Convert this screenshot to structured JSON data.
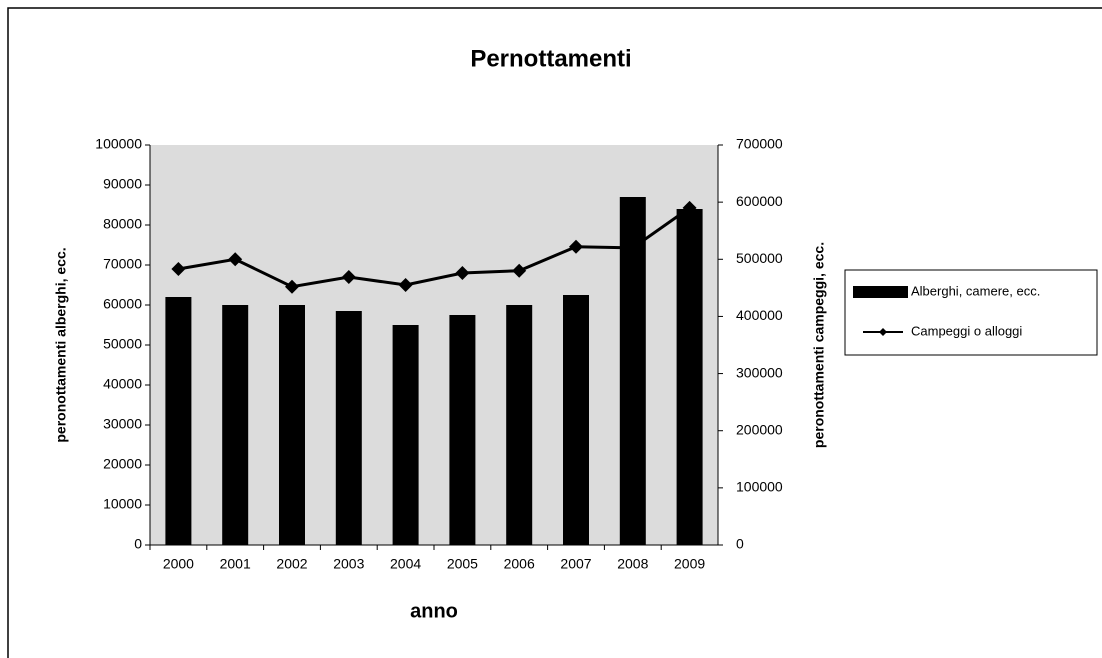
{
  "chart_data": {
    "type": "bar-line",
    "title": "Pernottamenti",
    "xlabel": "anno",
    "ylabel": "peronottamenti alberghi, ecc.",
    "y2label": "peronottamenti campeggi, ecc.",
    "categories": [
      "2000",
      "2001",
      "2002",
      "2003",
      "2004",
      "2005",
      "2006",
      "2007",
      "2008",
      "2009"
    ],
    "series": [
      {
        "name": "Alberghi, camere, ecc.",
        "type": "bar",
        "color": "#000000",
        "axis": "y",
        "values": [
          62000,
          60000,
          60000,
          58500,
          55000,
          57500,
          60000,
          62500,
          87000,
          84000
        ]
      },
      {
        "name": "Campeggi o alloggi",
        "type": "line",
        "color": "#000000",
        "axis": "y2",
        "values": [
          483000,
          500000,
          452000,
          469000,
          455000,
          476000,
          480000,
          522000,
          520000,
          590000
        ]
      }
    ],
    "ylim": [
      0,
      100000
    ],
    "yticks": [
      0,
      10000,
      20000,
      30000,
      40000,
      50000,
      60000,
      70000,
      80000,
      90000,
      100000
    ],
    "y2lim": [
      0,
      700000
    ],
    "y2ticks": [
      0,
      100000,
      200000,
      300000,
      400000,
      500000,
      600000,
      700000
    ],
    "legend": "right"
  }
}
